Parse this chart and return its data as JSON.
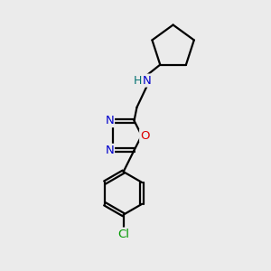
{
  "bg_color": "#ebebeb",
  "bond_color": "#000000",
  "N_color": "#0000cc",
  "O_color": "#dd0000",
  "Cl_color": "#009900",
  "H_color": "#007070",
  "line_width": 1.6,
  "font_size": 9.5,
  "fig_size": [
    3.0,
    3.0
  ],
  "dpi": 100,
  "xlim": [
    0,
    10
  ],
  "ylim": [
    0,
    10
  ]
}
